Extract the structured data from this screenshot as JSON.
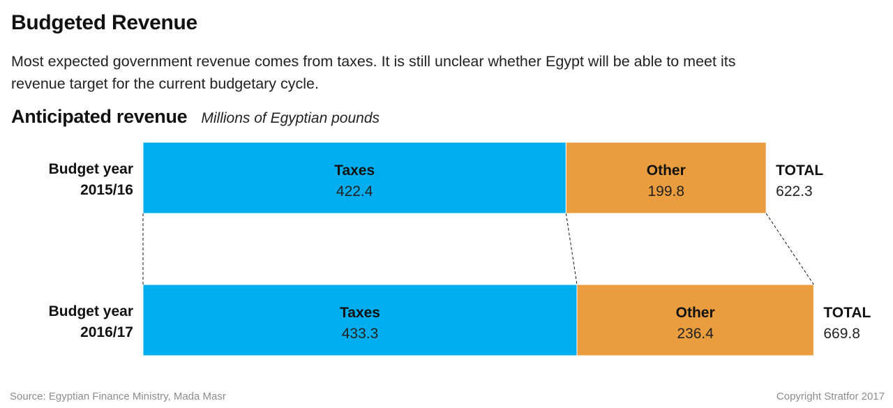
{
  "title": "Budgeted Revenue",
  "subtitle": "Most expected government revenue comes from taxes. It is still unclear whether Egypt will be able to meet its revenue target for the current budgetary cycle.",
  "source": "Source: Egyptian Finance Ministry, Mada Masr",
  "copyright": "Copyright Stratfor 2017",
  "colors": {
    "taxes": "#00AEEF",
    "other": "#EA9D3E",
    "text": "#111111"
  },
  "chart_data": {
    "type": "bar",
    "orientation": "horizontal-stacked",
    "title": "Anticipated revenue",
    "unit": "Millions of Egyptian pounds",
    "total_label": "TOTAL",
    "rows": [
      {
        "label_line1": "Budget year",
        "label_line2": "2015/16",
        "segments": [
          {
            "name": "Taxes",
            "value": 422.4,
            "display": "422.4"
          },
          {
            "name": "Other",
            "value": 199.8,
            "display": "199.8"
          }
        ],
        "total": "622.3"
      },
      {
        "label_line1": "Budget year",
        "label_line2": "2016/17",
        "segments": [
          {
            "name": "Taxes",
            "value": 433.3,
            "display": "433.3"
          },
          {
            "name": "Other",
            "value": 236.4,
            "display": "236.4"
          }
        ],
        "total": "669.8"
      }
    ]
  }
}
